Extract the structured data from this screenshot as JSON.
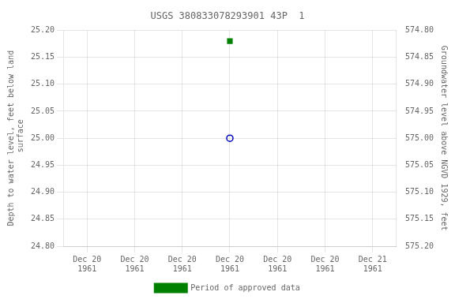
{
  "chart_data": {
    "type": "scatter",
    "title": "USGS 380833078293901 43P  1",
    "categories": [
      "Dec 20\n1961",
      "Dec 20\n1961",
      "Dec 20\n1961",
      "Dec 20\n1961",
      "Dec 20\n1961",
      "Dec 20\n1961",
      "Dec 21\n1961"
    ],
    "ylabel": "Depth to water level, feet below land\n surface",
    "y2label": "Groundwater level above NGVD 1929, feet",
    "series": [
      {
        "color": "#0000bb",
        "marker": "open_circle",
        "values": [
          null,
          null,
          null,
          25.0,
          null,
          null,
          null
        ]
      },
      {
        "name": "Period of approved data",
        "color": "#008000",
        "marker": "square",
        "values": [
          null,
          null,
          null,
          25.18,
          null,
          null,
          null
        ]
      }
    ],
    "ylim": [
      24.8,
      25.2
    ],
    "yticks": [
      {
        "value": 24.8,
        "label": "24.80"
      },
      {
        "value": 24.85,
        "label": "24.85"
      },
      {
        "value": 24.9,
        "label": "24.90"
      },
      {
        "value": 24.95,
        "label": "24.95"
      },
      {
        "value": 25.0,
        "label": "25.00"
      },
      {
        "value": 25.05,
        "label": "25.05"
      },
      {
        "value": 25.1,
        "label": "25.10"
      },
      {
        "value": 25.15,
        "label": "25.15"
      },
      {
        "value": 25.2,
        "label": "25.20"
      }
    ],
    "y2lim": [
      575.2,
      574.8
    ],
    "y2ticks": [
      {
        "value": 575.2,
        "label": "575.20"
      },
      {
        "value": 575.15,
        "label": "575.15"
      },
      {
        "value": 575.1,
        "label": "575.10"
      },
      {
        "value": 575.05,
        "label": "575.05"
      },
      {
        "value": 575.0,
        "label": "575.00"
      },
      {
        "value": 574.95,
        "label": "574.95"
      },
      {
        "value": 574.9,
        "label": "574.90"
      },
      {
        "value": 574.85,
        "label": "574.85"
      },
      {
        "value": 574.8,
        "label": "574.80"
      }
    ],
    "grid": true,
    "legend": "bottom"
  }
}
